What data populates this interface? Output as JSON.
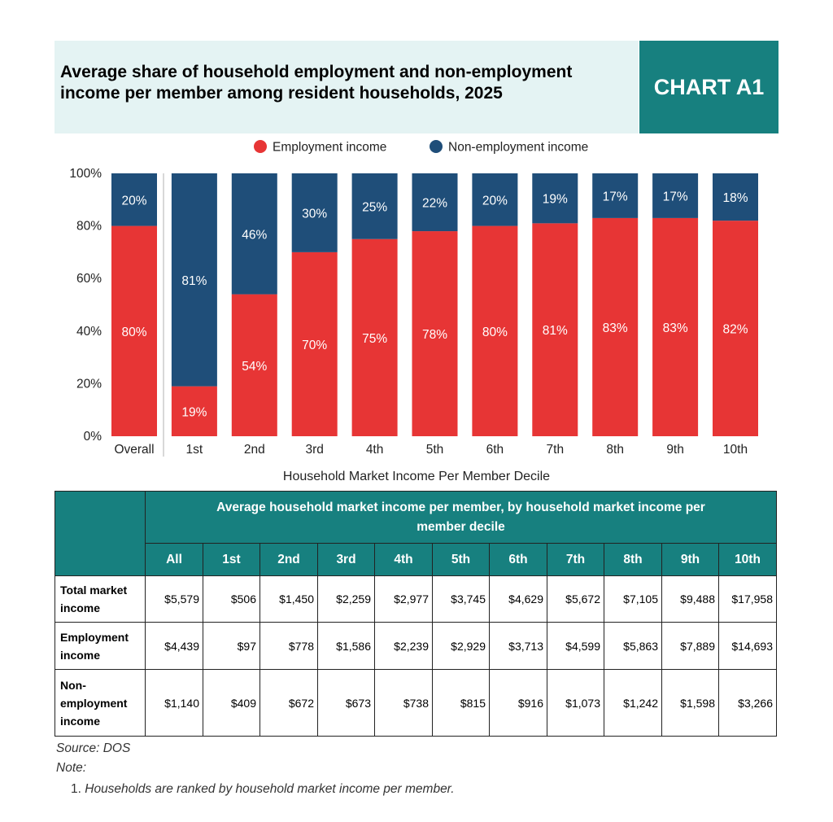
{
  "header": {
    "title_line1": "Average share of household employment and non-employment",
    "title_line2": "income per member among resident households, 2025",
    "badge": "CHART A1"
  },
  "colors": {
    "employment": "#e73535",
    "non_employment": "#1f4e79",
    "teal": "#17807f",
    "title_bg": "#e4f3f3"
  },
  "chart_data": {
    "type": "bar",
    "stacked": true,
    "categories": [
      "Overall",
      "1st",
      "2nd",
      "3rd",
      "4th",
      "5th",
      "6th",
      "7th",
      "8th",
      "9th",
      "10th"
    ],
    "series": [
      {
        "name": "Employment income",
        "values": [
          80,
          19,
          54,
          70,
          75,
          78,
          80,
          81,
          83,
          83,
          82
        ],
        "color": "#e73535"
      },
      {
        "name": "Non-employment income",
        "values": [
          20,
          81,
          46,
          30,
          25,
          22,
          20,
          19,
          17,
          17,
          18
        ],
        "color": "#1f4e79"
      }
    ],
    "data_labels": {
      "employment": [
        "80%",
        "19%",
        "54%",
        "70%",
        "75%",
        "78%",
        "80%",
        "81%",
        "83%",
        "83%",
        "82%"
      ],
      "non_employment": [
        "20%",
        "81%",
        "46%",
        "30%",
        "25%",
        "22%",
        "20%",
        "19%",
        "17%",
        "17%",
        "18%"
      ]
    },
    "y_ticks": [
      "0%",
      "20%",
      "40%",
      "60%",
      "80%",
      "100%"
    ],
    "ylim": [
      0,
      100
    ],
    "xlabel": "Household Market Income Per Member Decile",
    "legend_position": "top-center",
    "grid": false
  },
  "table": {
    "header_line1": "Average household market income per member, by household market income per",
    "header_line2": "member decile",
    "columns": [
      "All",
      "1st",
      "2nd",
      "3rd",
      "4th",
      "5th",
      "6th",
      "7th",
      "8th",
      "9th",
      "10th"
    ],
    "rows": [
      {
        "label_lines": [
          "Total market",
          "income"
        ],
        "values": [
          "$5,579",
          "$506",
          "$1,450",
          "$2,259",
          "$2,977",
          "$3,745",
          "$4,629",
          "$5,672",
          "$7,105",
          "$9,488",
          "$17,958"
        ]
      },
      {
        "label_lines": [
          "Employment",
          "income"
        ],
        "values": [
          "$4,439",
          "$97",
          "$778",
          "$1,586",
          "$2,239",
          "$2,929",
          "$3,713",
          "$4,599",
          "$5,863",
          "$7,889",
          "$14,693"
        ]
      },
      {
        "label_lines": [
          "Non-",
          "employment",
          "income"
        ],
        "values": [
          "$1,140",
          "$409",
          "$672",
          "$673",
          "$738",
          "$815",
          "$916",
          "$1,073",
          "$1,242",
          "$1,598",
          "$3,266"
        ]
      }
    ]
  },
  "footer": {
    "source": "Source: DOS",
    "note_label": "Note:",
    "note_number": "1.",
    "note_text": "Households are ranked by household market income per member."
  }
}
